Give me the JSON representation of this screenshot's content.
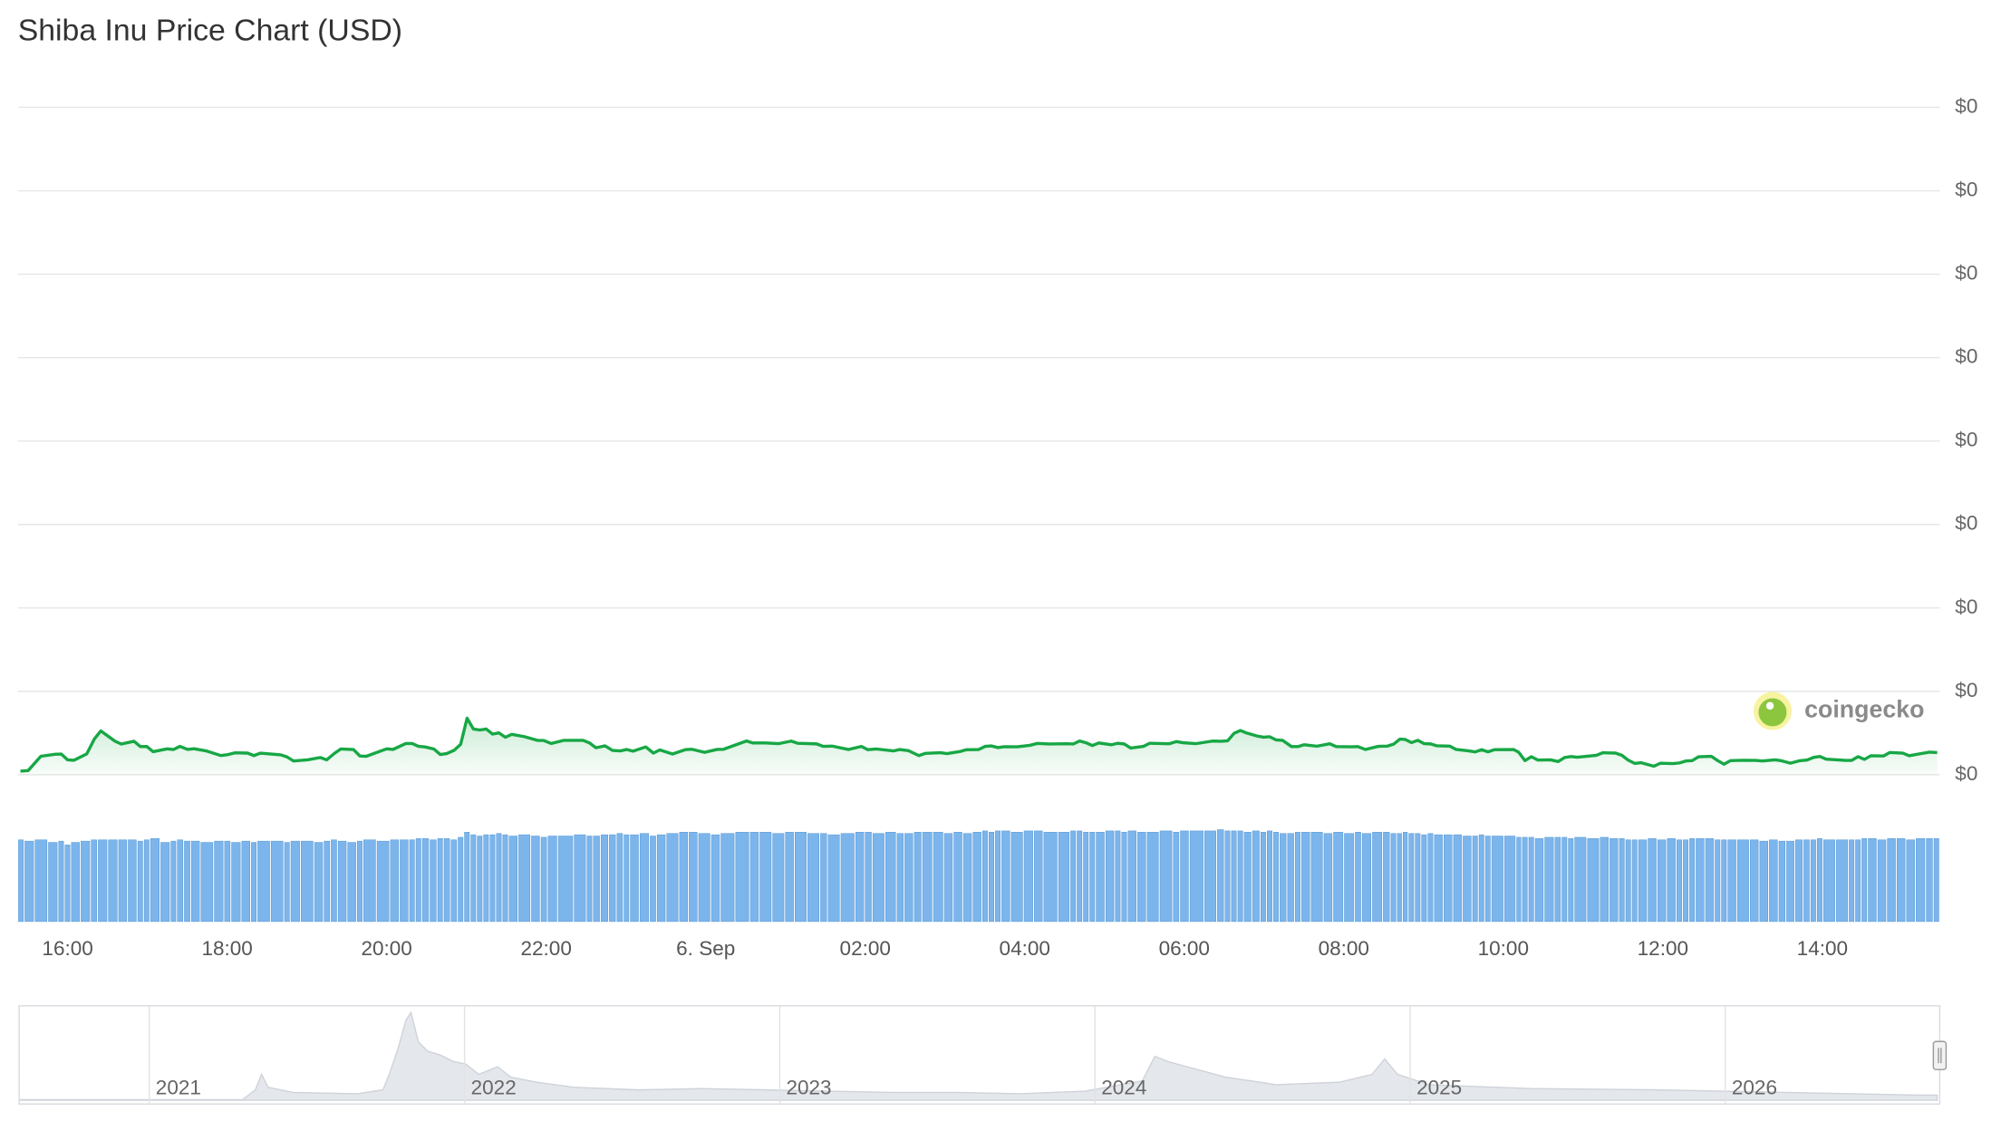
{
  "chart_data": {
    "type": "line",
    "title": "Shiba Inu Price Chart (USD)",
    "watermark": "coingecko",
    "color": "#17a745",
    "grid": true,
    "xlim": [
      15.408,
      39.44
    ],
    "xticks": [
      {
        "value": 16,
        "label": "16:00"
      },
      {
        "value": 18,
        "label": "18:00"
      },
      {
        "value": 20,
        "label": "20:00"
      },
      {
        "value": 22,
        "label": "22:00"
      },
      {
        "value": 24,
        "label": "6. Sep"
      },
      {
        "value": 26,
        "label": "02:00"
      },
      {
        "value": 28,
        "label": "04:00"
      },
      {
        "value": 30,
        "label": "06:00"
      },
      {
        "value": 32,
        "label": "08:00"
      },
      {
        "value": 34,
        "label": "10:00"
      },
      {
        "value": 36,
        "label": "12:00"
      },
      {
        "value": 38,
        "label": "14:00"
      }
    ],
    "ylim": [
      1.21e-05,
      1.29e-05
    ],
    "yticks": [
      {
        "value": 1.21e-05,
        "label": "$0"
      },
      {
        "value": 1.22e-05,
        "label": "$0"
      },
      {
        "value": 1.23e-05,
        "label": "$0"
      },
      {
        "value": 1.24e-05,
        "label": "$0"
      },
      {
        "value": 1.25e-05,
        "label": "$0"
      },
      {
        "value": 1.26e-05,
        "label": "$0"
      },
      {
        "value": 1.27e-05,
        "label": "$0"
      },
      {
        "value": 1.28e-05,
        "label": "$0"
      },
      {
        "value": 1.29e-05,
        "label": "$0"
      }
    ],
    "x": [
      15.408,
      15.504,
      15.664,
      15.84,
      15.92,
      16.0,
      16.08,
      16.24,
      16.336,
      16.416,
      16.592,
      16.672,
      16.832,
      16.912,
      16.992,
      17.072,
      17.248,
      17.328,
      17.408,
      17.504,
      17.584,
      17.744,
      17.92,
      18.0,
      18.096,
      18.256,
      18.336,
      18.416,
      18.672,
      18.752,
      18.832,
      19.008,
      19.168,
      19.248,
      19.344,
      19.424,
      19.584,
      19.664,
      19.744,
      20.0,
      20.08,
      20.24,
      20.32,
      20.4,
      20.48,
      20.592,
      20.672,
      20.752,
      20.848,
      20.928,
      21.008,
      21.088,
      21.168,
      21.248,
      21.328,
      21.408,
      21.488,
      21.568,
      21.728,
      21.888,
      21.968,
      22.064,
      22.224,
      22.464,
      22.544,
      22.624,
      22.736,
      22.832,
      22.928,
      23.008,
      23.088,
      23.248,
      23.344,
      23.424,
      23.584,
      23.744,
      23.824,
      23.984,
      24.144,
      24.224,
      24.512,
      24.592,
      24.752,
      24.912,
      25.072,
      25.152,
      25.392,
      25.472,
      25.584,
      25.792,
      25.952,
      26.032,
      26.144,
      26.352,
      26.432,
      26.544,
      26.672,
      26.752,
      26.944,
      27.024,
      27.184,
      27.264,
      27.424,
      27.504,
      27.584,
      27.664,
      27.744,
      27.904,
      28.064,
      28.16,
      28.304,
      28.528,
      28.608,
      28.688,
      28.768,
      28.848,
      28.928,
      29.088,
      29.168,
      29.248,
      29.328,
      29.488,
      29.568,
      29.808,
      29.904,
      29.984,
      30.144,
      30.352,
      30.464,
      30.544,
      30.624,
      30.704,
      30.784,
      30.912,
      30.992,
      31.072,
      31.152,
      31.232,
      31.344,
      31.424,
      31.504,
      31.664,
      31.824,
      31.904,
      32.096,
      32.176,
      32.272,
      32.432,
      32.544,
      32.624,
      32.704,
      32.768,
      32.848,
      32.928,
      33.008,
      33.088,
      33.168,
      33.328,
      33.408,
      33.568,
      33.648,
      33.728,
      33.808,
      33.888,
      34.128,
      34.192,
      34.272,
      34.352,
      34.432,
      34.592,
      34.688,
      34.768,
      34.848,
      34.928,
      35.168,
      35.248,
      35.408,
      35.488,
      35.568,
      35.648,
      35.728,
      35.888,
      35.968,
      36.128,
      36.208,
      36.288,
      36.368,
      36.448,
      36.608,
      36.688,
      36.768,
      36.848,
      37.008,
      37.168,
      37.248,
      37.408,
      37.488,
      37.6,
      37.712,
      37.808,
      37.888,
      37.968,
      38.048,
      38.288,
      38.368,
      38.448,
      38.528,
      38.608,
      38.768,
      38.848,
      39.008,
      39.088,
      39.248,
      39.344,
      39.44
    ],
    "values": [
      1.21044e-05,
      1.2105e-05,
      1.21222e-05,
      1.21246e-05,
      1.21249e-05,
      1.21179e-05,
      1.21174e-05,
      1.21251e-05,
      1.21431e-05,
      1.21526e-05,
      1.21404e-05,
      1.21369e-05,
      1.21402e-05,
      1.21338e-05,
      1.2134e-05,
      1.21277e-05,
      1.21311e-05,
      1.21303e-05,
      1.21341e-05,
      1.21304e-05,
      1.21312e-05,
      1.21285e-05,
      1.21231e-05,
      1.2124e-05,
      1.21263e-05,
      1.2126e-05,
      1.2123e-05,
      1.21259e-05,
      1.21239e-05,
      1.21214e-05,
      1.21165e-05,
      1.21179e-05,
      1.21207e-05,
      1.21179e-05,
      1.21256e-05,
      1.21309e-05,
      1.21303e-05,
      1.21225e-05,
      1.21222e-05,
      1.21311e-05,
      1.21304e-05,
      1.21375e-05,
      1.21375e-05,
      1.21341e-05,
      1.21334e-05,
      1.21309e-05,
      1.21243e-05,
      1.21254e-05,
      1.21295e-05,
      1.21366e-05,
      1.21678e-05,
      1.21548e-05,
      1.21537e-05,
      1.21549e-05,
      1.21488e-05,
      1.21502e-05,
      1.2145e-05,
      1.21485e-05,
      1.21457e-05,
      1.21413e-05,
      1.21412e-05,
      1.21375e-05,
      1.21413e-05,
      1.21413e-05,
      1.21381e-05,
      1.21324e-05,
      1.21347e-05,
      1.21292e-05,
      1.21286e-05,
      1.21303e-05,
      1.21283e-05,
      1.21334e-05,
      1.2126e-05,
      1.21298e-05,
      1.21249e-05,
      1.21301e-05,
      1.21306e-05,
      1.21269e-05,
      1.21304e-05,
      1.21306e-05,
      1.21405e-05,
      1.21381e-05,
      1.21381e-05,
      1.21373e-05,
      1.21404e-05,
      1.21378e-05,
      1.2137e-05,
      1.21341e-05,
      1.21344e-05,
      1.21303e-05,
      1.2134e-05,
      1.21301e-05,
      1.21309e-05,
      1.21286e-05,
      1.21303e-05,
      1.21289e-05,
      1.2123e-05,
      1.21256e-05,
      1.21265e-05,
      1.21254e-05,
      1.21278e-05,
      1.213e-05,
      1.21303e-05,
      1.21341e-05,
      1.21346e-05,
      1.21326e-05,
      1.21337e-05,
      1.21335e-05,
      1.21353e-05,
      1.21376e-05,
      1.21369e-05,
      1.21372e-05,
      1.21369e-05,
      1.21405e-05,
      1.21384e-05,
      1.2135e-05,
      1.21381e-05,
      1.2136e-05,
      1.21378e-05,
      1.21369e-05,
      1.2132e-05,
      1.21341e-05,
      1.21378e-05,
      1.21372e-05,
      1.21398e-05,
      1.21384e-05,
      1.21373e-05,
      1.21404e-05,
      1.21402e-05,
      1.21407e-05,
      1.21497e-05,
      1.21531e-05,
      1.215e-05,
      1.21465e-05,
      1.21451e-05,
      1.21456e-05,
      1.21418e-05,
      1.21413e-05,
      1.21338e-05,
      1.21338e-05,
      1.2136e-05,
      1.21343e-05,
      1.21372e-05,
      1.21338e-05,
      1.21335e-05,
      1.21338e-05,
      1.21303e-05,
      1.21341e-05,
      1.21343e-05,
      1.21367e-05,
      1.21428e-05,
      1.21424e-05,
      1.21386e-05,
      1.21413e-05,
      1.21373e-05,
      1.2137e-05,
      1.21347e-05,
      1.21344e-05,
      1.21304e-05,
      1.21286e-05,
      1.21274e-05,
      1.21301e-05,
      1.21275e-05,
      1.21301e-05,
      1.21303e-05,
      1.21271e-05,
      1.2117e-05,
      1.21217e-05,
      1.21177e-05,
      1.21179e-05,
      1.21159e-05,
      1.21207e-05,
      1.21219e-05,
      1.21211e-05,
      1.21233e-05,
      1.21265e-05,
      1.2126e-05,
      1.21233e-05,
      1.21174e-05,
      1.21136e-05,
      1.21145e-05,
      1.21103e-05,
      1.21138e-05,
      1.21135e-05,
      1.21142e-05,
      1.21165e-05,
      1.2117e-05,
      1.21216e-05,
      1.21222e-05,
      1.2117e-05,
      1.21127e-05,
      1.2117e-05,
      1.21174e-05,
      1.21173e-05,
      1.21165e-05,
      1.21179e-05,
      1.21168e-05,
      1.21139e-05,
      1.21168e-05,
      1.21176e-05,
      1.21208e-05,
      1.2122e-05,
      1.21187e-05,
      1.21173e-05,
      1.21173e-05,
      1.21217e-05,
      1.21185e-05,
      1.21228e-05,
      1.21226e-05,
      1.21268e-05,
      1.2126e-05,
      1.21228e-05,
      1.21256e-05,
      1.21272e-05,
      1.21266e-05
    ],
    "volume": {
      "type": "bar",
      "color": "#7cb5ec",
      "values": [
        64,
        63,
        64,
        62,
        63,
        60,
        62,
        63,
        64,
        64,
        64,
        64,
        64,
        63,
        64,
        65,
        62,
        63,
        64,
        63,
        63,
        62,
        63,
        63,
        62,
        63,
        62,
        63,
        63,
        62,
        63,
        63,
        62,
        63,
        64,
        63,
        62,
        63,
        64,
        63,
        64,
        64,
        64,
        65,
        65,
        64,
        65,
        65,
        64,
        66,
        70,
        68,
        67,
        68,
        68,
        69,
        68,
        67,
        68,
        67,
        66,
        67,
        67,
        68,
        67,
        67,
        68,
        68,
        69,
        68,
        68,
        69,
        67,
        68,
        69,
        70,
        70,
        69,
        68,
        69,
        70,
        70,
        70,
        69,
        70,
        70,
        69,
        69,
        68,
        69,
        70,
        70,
        69,
        70,
        69,
        69,
        70,
        70,
        70,
        69,
        70,
        69,
        70,
        71,
        70,
        71,
        71,
        70,
        71,
        71,
        70,
        70,
        71,
        71,
        70,
        70,
        70,
        71,
        71,
        70,
        71,
        70,
        70,
        71,
        70,
        71,
        71,
        71,
        72,
        71,
        71,
        71,
        70,
        71,
        70,
        71,
        70,
        69,
        69,
        70,
        70,
        70,
        69,
        70,
        69,
        70,
        69,
        70,
        70,
        69,
        69,
        70,
        69,
        69,
        68,
        69,
        68,
        68,
        68,
        67,
        67,
        68,
        67,
        67,
        67,
        66,
        66,
        66,
        65,
        66,
        66,
        66,
        65,
        66,
        65,
        66,
        65,
        65,
        64,
        64,
        64,
        65,
        64,
        65,
        64,
        64,
        65,
        65,
        65,
        64,
        64,
        64,
        64,
        64,
        63,
        64,
        63,
        63,
        64,
        64,
        64,
        65,
        64,
        64,
        64,
        64,
        65,
        65,
        64,
        65,
        65,
        64,
        65,
        65,
        65
      ]
    },
    "navigator": {
      "type": "area",
      "color": "#e4e7ec",
      "xlim": [
        2020.591,
        2026.672
      ],
      "ylim": [
        0,
        9e-05
      ],
      "xticks": [
        2021,
        2022,
        2023,
        2024,
        2025,
        2026
      ],
      "x": [
        2020.591,
        2021.296,
        2021.336,
        2021.356,
        2021.377,
        2021.457,
        2021.66,
        2021.741,
        2021.761,
        2021.789,
        2021.814,
        2021.83,
        2021.854,
        2021.883,
        2021.923,
        2021.964,
        2022.004,
        2022.045,
        2022.105,
        2022.146,
        2022.227,
        2022.348,
        2022.551,
        2022.753,
        2022.955,
        2023.158,
        2023.36,
        2023.563,
        2023.765,
        2023.968,
        2024.15,
        2024.19,
        2024.231,
        2024.291,
        2024.413,
        2024.575,
        2024.777,
        2024.879,
        2024.919,
        2024.96,
        2025.061,
        2025.385,
        2025.789,
        2026.194,
        2026.599,
        2026.672
      ],
      "values": [
        5e-07,
        5e-07,
        1.04e-05,
        2.6e-05,
        1.3e-05,
        7.8e-06,
        6.5e-06,
        1.04e-05,
        2.6e-05,
        5.2e-05,
        8.06e-05,
        8.84e-05,
        5.85e-05,
        4.94e-05,
        4.55e-05,
        3.9e-05,
        3.64e-05,
        2.6e-05,
        3.38e-05,
        2.34e-05,
        1.82e-05,
        1.3e-05,
        1.04e-05,
        1.17e-05,
        1.04e-05,
        9.1e-06,
        7.8e-06,
        7.8e-06,
        6.5e-06,
        9.1e-06,
        1.95e-05,
        4.42e-05,
        3.9e-05,
        3.38e-05,
        2.34e-05,
        1.56e-05,
        1.82e-05,
        2.6e-05,
        4.16e-05,
        2.6e-05,
        1.56e-05,
        1.17e-05,
        1.04e-05,
        7.8e-06,
        5.2e-06,
        5.2e-06
      ]
    }
  }
}
